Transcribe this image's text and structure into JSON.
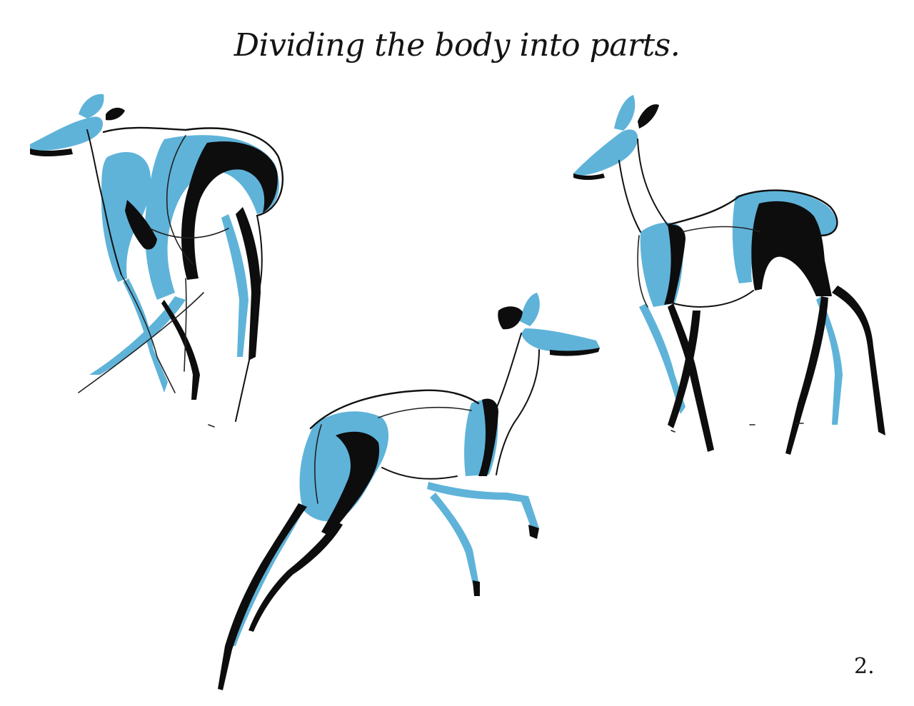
{
  "title": "Dividing the body into parts.",
  "page_number": "2.",
  "colors": {
    "accent_blue": "#5fb3d9",
    "ink": "#111111",
    "paper": "#ffffff"
  },
  "figures": [
    {
      "name": "deer-looking-back"
    },
    {
      "name": "deer-standing"
    },
    {
      "name": "deer-leaping"
    }
  ]
}
